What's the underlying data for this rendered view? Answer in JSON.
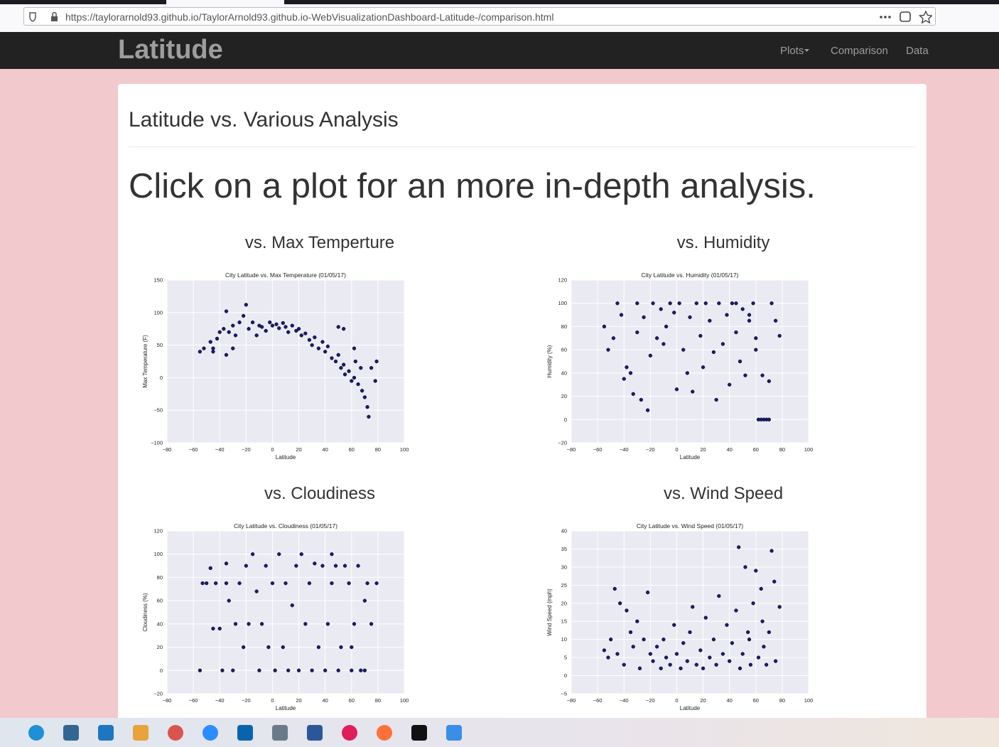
{
  "browser": {
    "url": "https://taylorarnold93.github.io/TaylorArnold93.github.io-WebVisualizationDashboard-Latitude-/comparison.html"
  },
  "navbar": {
    "brand": "Latitude",
    "items": [
      "Plots",
      "Comparison",
      "Data"
    ]
  },
  "header": {
    "title": "Latitude vs. Various Analysis",
    "subtitle": "Click on a plot for an more in-depth analysis."
  },
  "headings": [
    "vs. Max Temperture",
    "vs. Humidity",
    "vs. Cloudiness",
    "vs. Wind Speed"
  ],
  "chart_data": [
    {
      "type": "scatter",
      "title": "City Latitude vs. Max Temperature (01/05/17)",
      "xlabel": "Latitude",
      "ylabel": "Max Temperature (F)",
      "color": "#1a1a7a",
      "grid": true,
      "xlim": [
        -80,
        100
      ],
      "xticks": [
        {
          "value": -80,
          "label": "−80"
        },
        {
          "value": -60,
          "label": "−60"
        },
        {
          "value": -40,
          "label": "−40"
        },
        {
          "value": -20,
          "label": "−20"
        },
        0,
        20,
        40,
        60,
        80,
        100
      ],
      "ylim": [
        -100,
        150
      ],
      "yticks": [
        {
          "value": -100,
          "label": "−100"
        },
        {
          "value": -50,
          "label": "−50"
        },
        0,
        50,
        100,
        150
      ],
      "x": [
        -55,
        -52,
        -47,
        -45,
        -42,
        -40,
        -37,
        -35,
        -33,
        -30,
        -28,
        -25,
        -22,
        -20,
        -18,
        -15,
        -12,
        -10,
        -8,
        -5,
        -2,
        0,
        3,
        5,
        8,
        10,
        12,
        15,
        18,
        20,
        22,
        25,
        28,
        30,
        32,
        35,
        38,
        40,
        42,
        45,
        48,
        50,
        52,
        54,
        55,
        58,
        60,
        62,
        63,
        65,
        67,
        68,
        70,
        72,
        73,
        75,
        78,
        79,
        50,
        -30,
        -35,
        -45,
        62,
        54
      ],
      "y": [
        40,
        45,
        55,
        40,
        60,
        70,
        75,
        102,
        70,
        80,
        65,
        85,
        95,
        112,
        75,
        85,
        65,
        80,
        78,
        72,
        85,
        80,
        82,
        76,
        84,
        78,
        70,
        80,
        72,
        75,
        65,
        68,
        58,
        50,
        62,
        45,
        55,
        40,
        48,
        30,
        25,
        35,
        15,
        20,
        5,
        10,
        -5,
        0,
        25,
        -10,
        15,
        -20,
        -30,
        -45,
        -60,
        15,
        -5,
        25,
        78,
        45,
        35,
        45,
        45,
        75
      ]
    },
    {
      "type": "scatter",
      "title": "City Latitude vs. Humidity (01/05/17)",
      "xlabel": "Latitude",
      "ylabel": "Humidity (%)",
      "color": "#1a1a7a",
      "grid": true,
      "xlim": [
        -80,
        100
      ],
      "xticks": [
        {
          "value": -80,
          "label": "−80"
        },
        {
          "value": -60,
          "label": "−60"
        },
        {
          "value": -40,
          "label": "−40"
        },
        {
          "value": -20,
          "label": "−20"
        },
        0,
        20,
        40,
        60,
        80,
        100
      ],
      "ylim": [
        -20,
        120
      ],
      "yticks": [
        {
          "value": -20,
          "label": "−20"
        },
        0,
        20,
        40,
        60,
        80,
        100,
        120
      ],
      "x": [
        -55,
        -52,
        -48,
        -45,
        -42,
        -40,
        -38,
        -35,
        -33,
        -30,
        -27,
        -25,
        -22,
        -20,
        -18,
        -15,
        -12,
        -10,
        -8,
        -5,
        -2,
        0,
        2,
        5,
        8,
        10,
        12,
        15,
        18,
        20,
        22,
        25,
        28,
        30,
        32,
        35,
        38,
        40,
        42,
        45,
        48,
        50,
        52,
        55,
        58,
        60,
        62,
        64,
        66,
        68,
        70,
        72,
        65,
        70,
        75,
        78,
        60,
        55,
        45,
        -30
      ],
      "y": [
        80,
        60,
        70,
        100,
        90,
        35,
        45,
        40,
        22,
        75,
        17,
        88,
        8,
        55,
        100,
        70,
        95,
        65,
        80,
        100,
        92,
        26,
        100,
        60,
        40,
        88,
        24,
        100,
        72,
        45,
        100,
        85,
        58,
        17,
        100,
        65,
        90,
        30,
        100,
        75,
        50,
        95,
        38,
        85,
        100,
        70,
        0,
        0,
        0,
        0,
        0,
        100,
        38,
        33,
        85,
        72,
        60,
        90,
        100,
        100
      ]
    },
    {
      "type": "scatter",
      "title": "City Latitude vs. Cloudiness (01/05/17)",
      "xlabel": "Latitude",
      "ylabel": "Cloudiness (%)",
      "color": "#1a1a7a",
      "grid": true,
      "xlim": [
        -80,
        100
      ],
      "xticks": [
        {
          "value": -80,
          "label": "−80"
        },
        {
          "value": -60,
          "label": "−60"
        },
        {
          "value": -40,
          "label": "−40"
        },
        {
          "value": -20,
          "label": "−20"
        },
        0,
        20,
        40,
        60,
        80,
        100
      ],
      "ylim": [
        -20,
        120
      ],
      "yticks": [
        {
          "value": -20,
          "label": "−20"
        },
        0,
        20,
        40,
        60,
        80,
        100,
        120
      ],
      "x": [
        -55,
        -53,
        -50,
        -47,
        -45,
        -43,
        -40,
        -38,
        -35,
        -35,
        -33,
        -30,
        -28,
        -25,
        -22,
        -20,
        -18,
        -15,
        -12,
        -10,
        -8,
        -5,
        -3,
        0,
        2,
        5,
        8,
        10,
        12,
        15,
        18,
        20,
        22,
        25,
        28,
        30,
        32,
        35,
        38,
        40,
        42,
        45,
        48,
        50,
        52,
        55,
        58,
        60,
        62,
        65,
        67,
        70,
        72,
        75,
        79,
        70,
        60,
        45
      ],
      "y": [
        0,
        75,
        75,
        88,
        36,
        75,
        36,
        0,
        92,
        75,
        60,
        0,
        40,
        75,
        20,
        90,
        40,
        100,
        68,
        0,
        40,
        90,
        20,
        75,
        0,
        100,
        20,
        75,
        0,
        56,
        90,
        0,
        100,
        40,
        75,
        0,
        92,
        20,
        90,
        0,
        40,
        75,
        90,
        0,
        20,
        90,
        75,
        0,
        40,
        90,
        0,
        0,
        75,
        40,
        75,
        60,
        20,
        100
      ]
    },
    {
      "type": "scatter",
      "title": "City Latitude vs. Wind Speed (01/05/17)",
      "xlabel": "Latitude",
      "ylabel": "Wind Speed (mph)",
      "color": "#1a1a7a",
      "grid": true,
      "xlim": [
        -80,
        100
      ],
      "xticks": [
        {
          "value": -80,
          "label": "−80"
        },
        {
          "value": -60,
          "label": "−60"
        },
        {
          "value": -40,
          "label": "−40"
        },
        {
          "value": -20,
          "label": "−20"
        },
        0,
        20,
        40,
        60,
        80,
        100
      ],
      "ylim": [
        -5,
        40
      ],
      "yticks": [
        {
          "value": -5,
          "label": "−5"
        },
        0,
        5,
        10,
        15,
        20,
        25,
        30,
        35,
        40
      ],
      "x": [
        -55,
        -52,
        -50,
        -47,
        -45,
        -43,
        -40,
        -38,
        -35,
        -33,
        -30,
        -28,
        -25,
        -22,
        -20,
        -18,
        -15,
        -12,
        -10,
        -8,
        -5,
        -2,
        0,
        3,
        5,
        8,
        10,
        12,
        15,
        18,
        20,
        22,
        25,
        28,
        30,
        32,
        35,
        38,
        40,
        42,
        45,
        47,
        50,
        52,
        54,
        56,
        58,
        60,
        62,
        64,
        66,
        68,
        70,
        72,
        74,
        78,
        75,
        65,
        55,
        48
      ],
      "y": [
        7,
        5,
        10,
        24,
        6,
        20,
        3,
        18,
        12,
        8,
        15,
        2,
        10,
        23,
        6,
        4,
        8,
        2,
        10,
        5,
        3,
        14,
        6,
        2,
        9,
        4,
        12,
        19,
        3,
        7,
        2,
        16,
        5,
        10,
        3,
        22,
        6,
        14,
        4,
        9,
        18,
        35.5,
        6,
        30,
        12,
        3,
        20,
        29,
        5,
        24,
        8,
        3,
        12,
        34.5,
        26,
        19,
        4,
        15,
        10,
        2
      ]
    }
  ]
}
